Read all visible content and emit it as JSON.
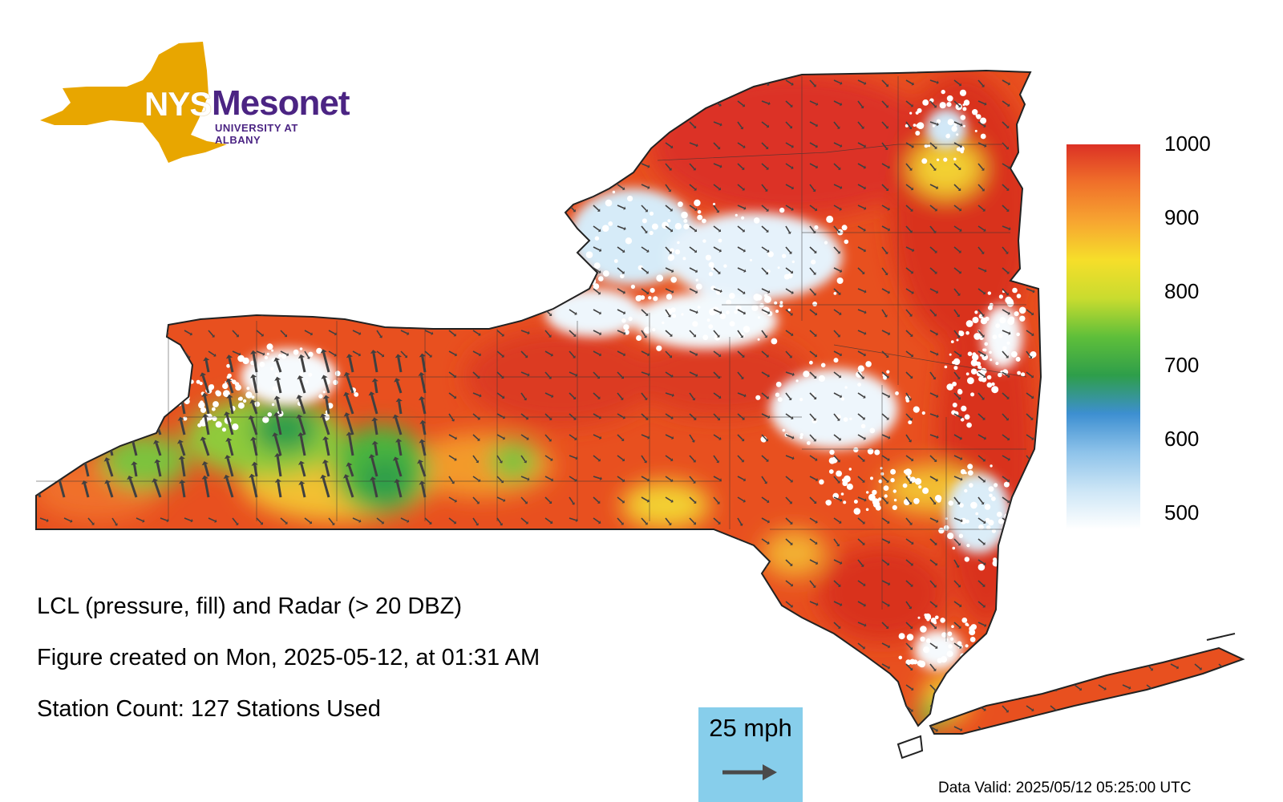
{
  "logo": {
    "primary": "NYS",
    "name": "Mesonet",
    "subtitle": "UNIVERSITY AT ALBANY",
    "state_color": "#e8a600",
    "name_color": "#4b2483"
  },
  "colorbar": {
    "ticks": [
      "1000",
      "900",
      "800",
      "700",
      "600",
      "500"
    ],
    "min": 500,
    "max": 1000,
    "colors": [
      "#ffffff",
      "#cde6f6",
      "#8ec3ea",
      "#3d8fd1",
      "#2e9e4a",
      "#5fbf3a",
      "#c9dc2f",
      "#f6de2a",
      "#f7a531",
      "#f0702a",
      "#dc3125"
    ]
  },
  "info": {
    "line1": "LCL (pressure, fill) and Radar (> 20 DBZ)",
    "line2": "Figure created on Mon, 2025-05-12, at 01:31 AM",
    "line3": "Station Count: 127 Stations Used"
  },
  "wind_scale": {
    "label": "25 mph",
    "box_color": "#87ceeb",
    "arrow_color": "#4a4a4a"
  },
  "valid_time": "Data Valid: 2025/05/12 05:25:00 UTC",
  "map": {
    "state_fill": "#e8501f",
    "outline_color": "#222222",
    "radar_color": "#ffffff",
    "vector_color": "#404040"
  }
}
